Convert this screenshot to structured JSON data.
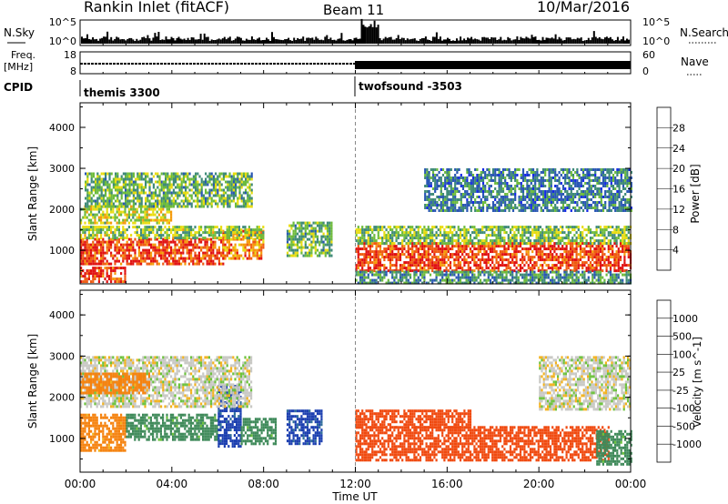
{
  "header": {
    "station": "Rankin Inlet (fitACF)",
    "beam": "Beam 11",
    "date": "10/Mar/2016"
  },
  "top_panels": {
    "nsky": {
      "label": "N.Sky",
      "right_label": "N.Search",
      "left_ticks": [
        "10^5",
        "10^0"
      ],
      "right_ticks": [
        "10^5",
        "10^0"
      ]
    },
    "freq": {
      "label_line1": "Freq.",
      "label_line2": "[MHz]",
      "right_label": "Nave",
      "left_ticks": [
        "18",
        "8"
      ],
      "right_ticks": [
        "60",
        "0"
      ]
    },
    "cpid": {
      "label": "CPID",
      "segments": [
        {
          "name": "themis 3300",
          "start_hour": 0
        },
        {
          "name": "twofsound -3503",
          "start_hour": 12
        }
      ]
    }
  },
  "chart_data": [
    {
      "type": "heatmap",
      "title": "",
      "parameter": "Power",
      "xlabel": "Time UT",
      "ylabel": "Slant Range [km]",
      "x_range_hours": [
        0,
        24
      ],
      "x_ticks": [
        "00:00",
        "04:00",
        "08:00",
        "12:00",
        "16:00",
        "20:00",
        "00:00"
      ],
      "ylim": [
        180,
        4600
      ],
      "y_ticks": [
        1000,
        2000,
        3000,
        4000
      ],
      "colorbar": {
        "label": "Power [dB]",
        "tick_labels": [
          "28",
          "24",
          "20",
          "16",
          "12",
          "8",
          "4"
        ],
        "range": [
          0,
          30
        ],
        "colors": [
          "#1428e6",
          "#2a57b4",
          "#3f8a78",
          "#6dbb3c",
          "#e8dc10",
          "#f59a0a",
          "#ef5a10",
          "#e01010"
        ]
      },
      "echo_regions": [
        {
          "t0": 0.0,
          "t1": 6.2,
          "r0": 700,
          "r1": 1300,
          "level": 26
        },
        {
          "t0": 6.2,
          "t1": 8.0,
          "r0": 800,
          "r1": 1500,
          "level": 22
        },
        {
          "t0": 0.0,
          "t1": 8.0,
          "r0": 1300,
          "r1": 1600,
          "level": 14
        },
        {
          "t0": 0.0,
          "t1": 4.0,
          "r0": 1700,
          "r1": 2100,
          "level": 16
        },
        {
          "t0": 0.2,
          "t1": 7.5,
          "r0": 2100,
          "r1": 2900,
          "level": 12
        },
        {
          "t0": 0.0,
          "t1": 2.0,
          "r0": 250,
          "r1": 600,
          "level": 26
        },
        {
          "t0": 9.0,
          "t1": 11.0,
          "r0": 900,
          "r1": 1700,
          "level": 12
        },
        {
          "t0": 12.0,
          "t1": 24.0,
          "r0": 500,
          "r1": 1200,
          "level": 26
        },
        {
          "t0": 12.0,
          "t1": 24.0,
          "r0": 1200,
          "r1": 1600,
          "level": 13
        },
        {
          "t0": 12.0,
          "t1": 24.0,
          "r0": 200,
          "r1": 500,
          "level": 10
        },
        {
          "t0": 15.0,
          "t1": 24.0,
          "r0": 2000,
          "r1": 3000,
          "level": 8
        }
      ]
    },
    {
      "type": "heatmap",
      "title": "",
      "parameter": "Velocity",
      "xlabel": "Time UT",
      "ylabel": "Slant Range [km]",
      "x_range_hours": [
        0,
        24
      ],
      "x_ticks": [
        "00:00",
        "04:00",
        "08:00",
        "12:00",
        "16:00",
        "20:00",
        "00:00"
      ],
      "ylim": [
        180,
        4600
      ],
      "y_ticks": [
        1000,
        2000,
        3000,
        4000
      ],
      "colorbar": {
        "label": "Velocity [m s^-1]",
        "tick_labels": [
          "1000",
          "500",
          "100",
          "25",
          "-25",
          "-100",
          "-500",
          "-1000"
        ],
        "colors": [
          "#1c3fb0",
          "#2f6e9a",
          "#3f8a5a",
          "#6cc23c",
          "#c8c8c4",
          "#f2b21e",
          "#f5820e",
          "#f04a10",
          "#e01010"
        ]
      },
      "echo_regions": [
        {
          "t0": 0.0,
          "t1": 2.0,
          "r0": 700,
          "r1": 1600,
          "velocity": -100
        },
        {
          "t0": 2.0,
          "t1": 6.0,
          "r0": 1000,
          "r1": 1600,
          "velocity": 100
        },
        {
          "t0": 6.0,
          "t1": 7.0,
          "r0": 800,
          "r1": 2300,
          "velocity": 900
        },
        {
          "t0": 7.0,
          "t1": 8.5,
          "r0": 900,
          "r1": 1500,
          "velocity": 100
        },
        {
          "t0": 0.0,
          "t1": 7.5,
          "r0": 1800,
          "r1": 3000,
          "velocity": 0
        },
        {
          "t0": 0.0,
          "t1": 3.0,
          "r0": 2100,
          "r1": 2600,
          "velocity": -100
        },
        {
          "t0": 9.0,
          "t1": 10.5,
          "r0": 900,
          "r1": 1700,
          "velocity": 900
        },
        {
          "t0": 12.0,
          "t1": 23.0,
          "r0": 500,
          "r1": 1300,
          "velocity": -500
        },
        {
          "t0": 12.0,
          "t1": 17.0,
          "r0": 1300,
          "r1": 1700,
          "velocity": -500
        },
        {
          "t0": 20.0,
          "t1": 24.0,
          "r0": 1700,
          "r1": 3000,
          "velocity": 0
        },
        {
          "t0": 22.5,
          "t1": 24.0,
          "r0": 400,
          "r1": 1200,
          "velocity": 100
        }
      ]
    }
  ]
}
